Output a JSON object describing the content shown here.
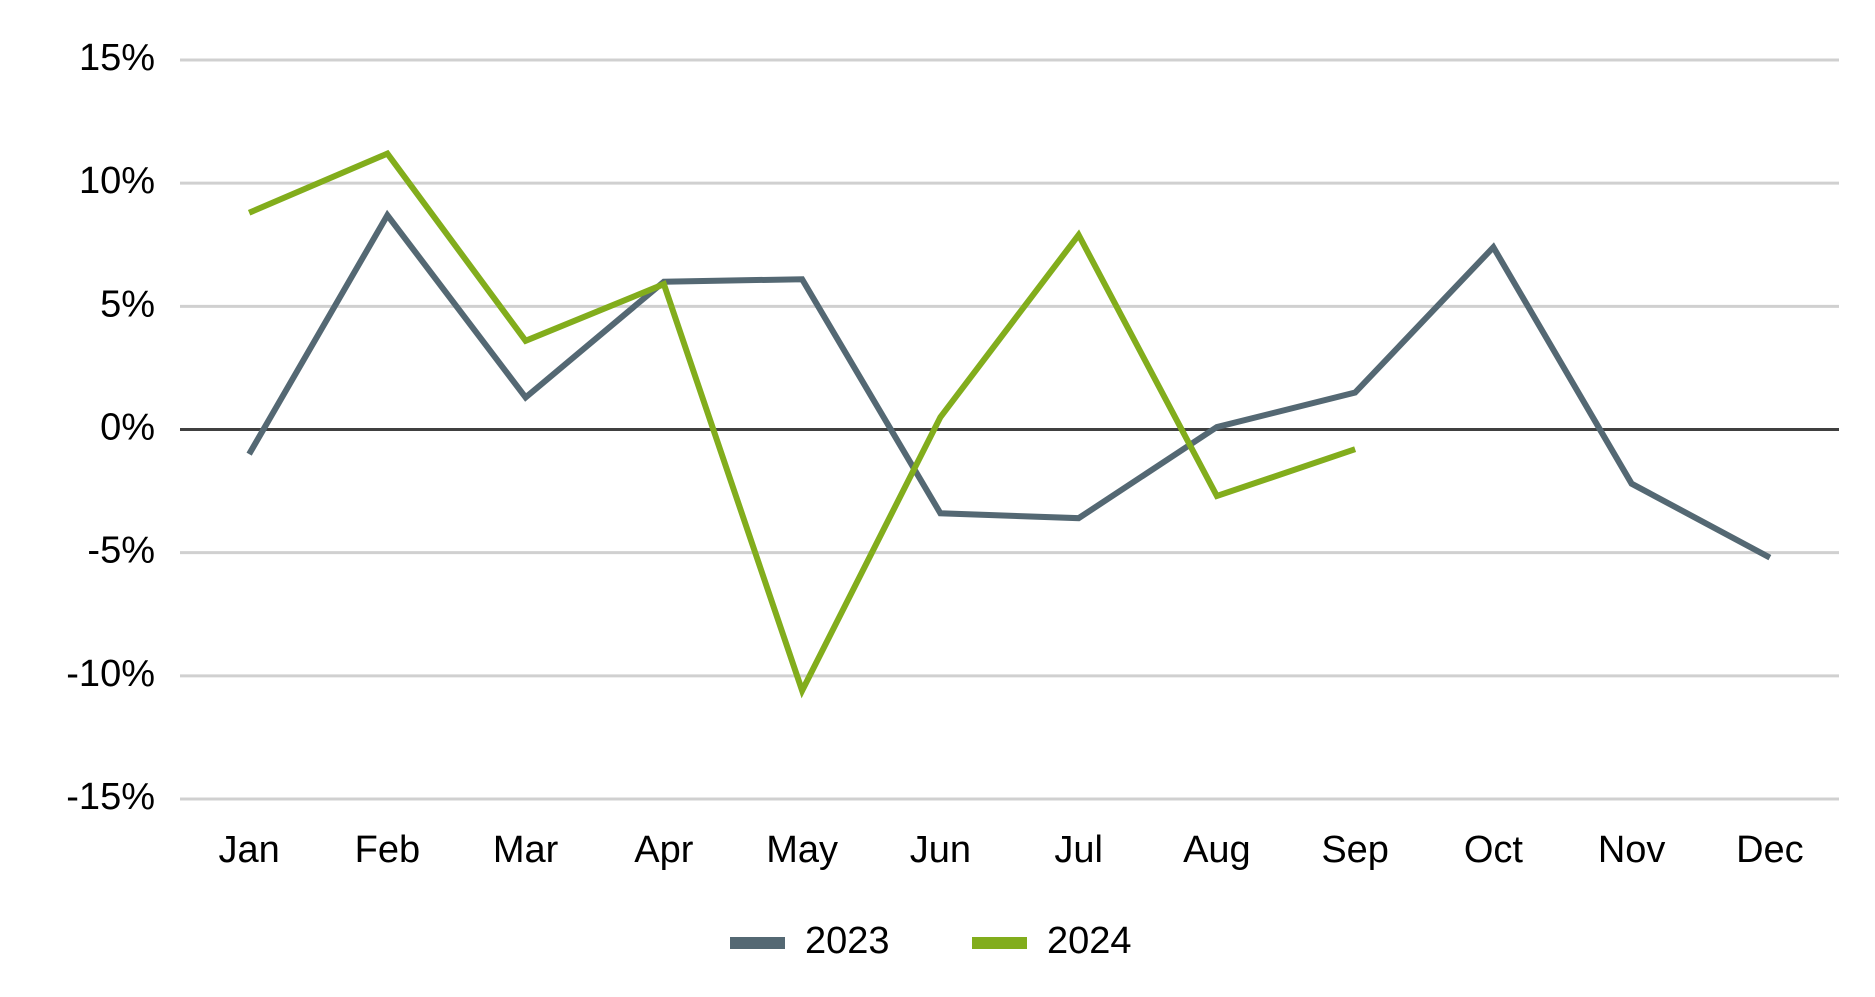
{
  "chart_data": {
    "type": "line",
    "categories": [
      "Jan",
      "Feb",
      "Mar",
      "Apr",
      "May",
      "Jun",
      "Jul",
      "Aug",
      "Sep",
      "Oct",
      "Nov",
      "Dec"
    ],
    "series": [
      {
        "name": "2023",
        "color": "#546873",
        "values": [
          -1.0,
          8.7,
          1.3,
          6.0,
          6.1,
          -3.4,
          -3.6,
          0.1,
          1.5,
          7.4,
          -2.2,
          -5.2
        ]
      },
      {
        "name": "2024",
        "color": "#82ad1c",
        "values": [
          8.8,
          11.2,
          3.6,
          5.9,
          -10.6,
          0.5,
          7.9,
          -2.7,
          -0.8,
          null,
          null,
          null
        ]
      }
    ],
    "ylim": [
      -15,
      15
    ],
    "yticks": [
      {
        "value": -15,
        "label": "-15%"
      },
      {
        "value": -10,
        "label": "-10%"
      },
      {
        "value": -5,
        "label": "-5%"
      },
      {
        "value": 0,
        "label": "0%"
      },
      {
        "value": 5,
        "label": "5%"
      },
      {
        "value": 10,
        "label": "10%"
      },
      {
        "value": 15,
        "label": "15%"
      }
    ],
    "grid": true,
    "legend": "bottom"
  }
}
